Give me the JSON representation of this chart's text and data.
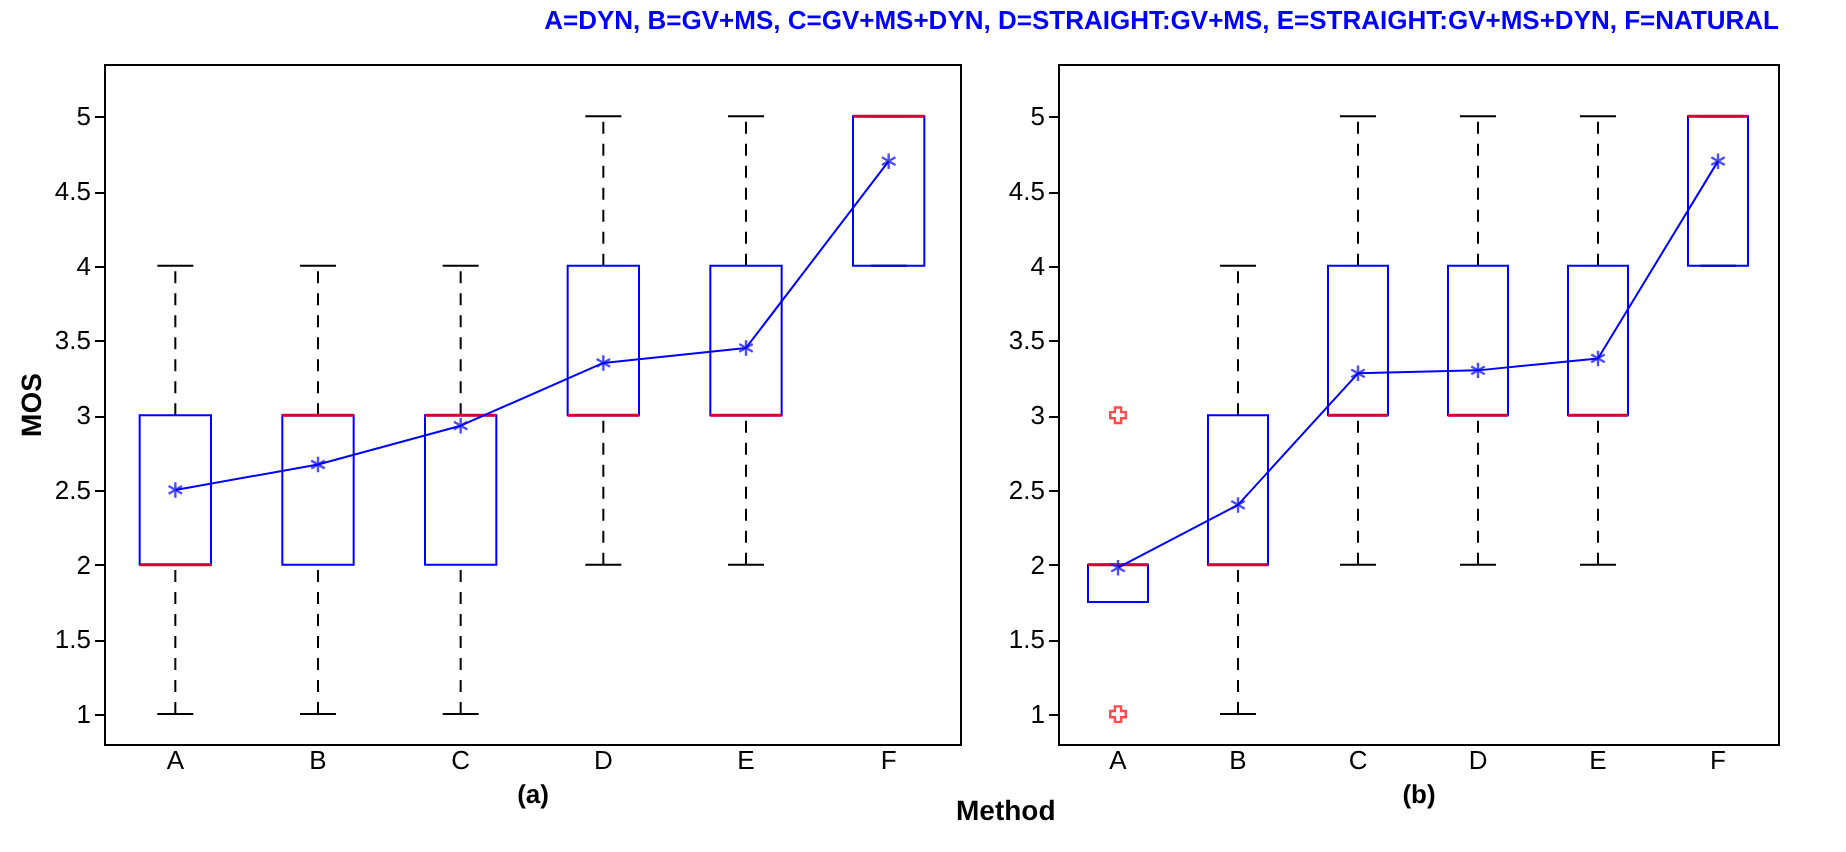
{
  "chart_data": [
    {
      "type": "box",
      "title": "A=DYN, B=GV+MS, C=GV+MS+DYN, D=STRAIGHT:GV+MS, E=STRAIGHT:GV+MS+DYN, F=NATURAL",
      "xlabel": "(a)",
      "ylabel": "MOS",
      "annotations": [
        "Method"
      ],
      "categories": [
        "A",
        "B",
        "C",
        "D",
        "E",
        "F"
      ],
      "ylim": [
        0.8,
        5.35
      ],
      "yticks": [
        1,
        1.5,
        2,
        2.5,
        3,
        3.5,
        4,
        4.5,
        5
      ],
      "grid": false,
      "color": "#0000ff",
      "boxes": [
        {
          "low": 1,
          "q1": 2,
          "median": 2,
          "q3": 3,
          "high": 4
        },
        {
          "low": 1,
          "q1": 2,
          "median": 3,
          "q3": 3,
          "high": 4
        },
        {
          "low": 1,
          "q1": 2,
          "median": 3,
          "q3": 3,
          "high": 4
        },
        {
          "low": 2,
          "q1": 3,
          "median": 3,
          "q3": 4,
          "high": 5
        },
        {
          "low": 2,
          "q1": 3,
          "median": 3,
          "q3": 4,
          "high": 5
        },
        {
          "low": 4,
          "q1": 4,
          "median": 5,
          "q3": 5,
          "high": 5
        }
      ],
      "series": [
        {
          "type": "line",
          "color": "#0000ff",
          "marker": "cross",
          "values": [
            2.5,
            2.67,
            2.93,
            3.35,
            3.45,
            4.7
          ]
        }
      ]
    },
    {
      "type": "box",
      "xlabel": "(b)",
      "categories": [
        "A",
        "B",
        "C",
        "D",
        "E",
        "F"
      ],
      "ylim": [
        0.8,
        5.35
      ],
      "yticks": [
        1,
        1.5,
        2,
        2.5,
        3,
        3.5,
        4,
        4.5,
        5
      ],
      "grid": false,
      "color": "#0000ff",
      "boxes": [
        {
          "low": 1.75,
          "q1": 1.75,
          "median": 2,
          "q3": 2,
          "high": 2,
          "outliers": [
            1,
            3
          ]
        },
        {
          "low": 1,
          "q1": 2,
          "median": 2,
          "q3": 3,
          "high": 4
        },
        {
          "low": 2,
          "q1": 3,
          "median": 3,
          "q3": 4,
          "high": 5
        },
        {
          "low": 2,
          "q1": 3,
          "median": 3,
          "q3": 4,
          "high": 5
        },
        {
          "low": 2,
          "q1": 3,
          "median": 3,
          "q3": 4,
          "high": 5
        },
        {
          "low": 4,
          "q1": 4,
          "median": 5,
          "q3": 5,
          "high": 5
        }
      ],
      "series": [
        {
          "type": "line",
          "color": "#0000ff",
          "marker": "cross",
          "values": [
            1.98,
            2.4,
            3.28,
            3.3,
            3.38,
            4.7
          ]
        }
      ]
    }
  ]
}
